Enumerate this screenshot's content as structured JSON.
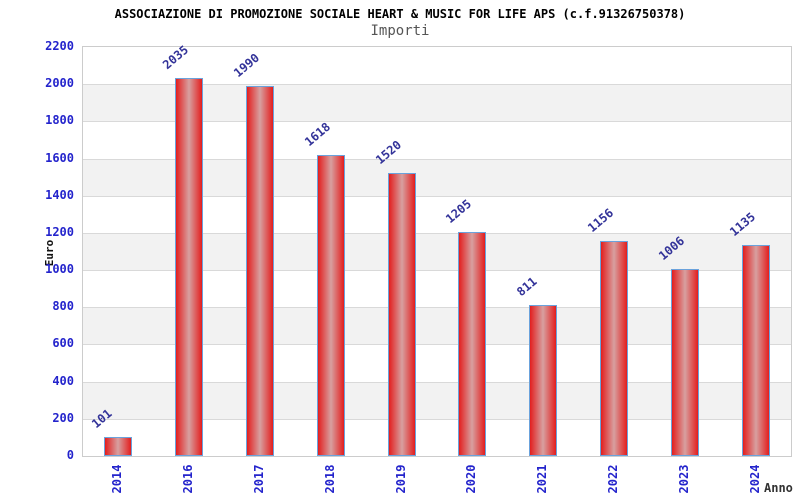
{
  "header": {
    "title": "ASSOCIAZIONE DI PROMOZIONE SOCIALE HEART & MUSIC FOR LIFE APS (c.f.91326750378)",
    "subtitle": "Importi"
  },
  "chart_data": {
    "type": "bar",
    "title": "ASSOCIAZIONE DI PROMOZIONE SOCIALE HEART & MUSIC FOR LIFE APS (c.f.91326750378)",
    "subtitle": "Importi",
    "categories": [
      "2014",
      "2016",
      "2017",
      "2018",
      "2019",
      "2020",
      "2021",
      "2022",
      "2023",
      "2024"
    ],
    "values": [
      101,
      2035,
      1990,
      1618,
      1520,
      1205,
      811,
      1156,
      1006,
      1135
    ],
    "xlabel": "Anno",
    "ylabel": "Euro",
    "ylim": [
      0,
      2200
    ],
    "ytick_step": 200,
    "grid": "horizontal-bands-alternating",
    "legend": false,
    "bar_labels_rotation_deg": -40,
    "colors": {
      "bar_edge_red": "#e31e1e",
      "bar_center_light": "#d7a0a0",
      "bar_border_blue": "#6aa2dc",
      "tick_label_blue": "#2424cc",
      "value_label_navy": "#333399",
      "band_gray": "#f2f2f2",
      "band_white": "#ffffff",
      "gridline_gray": "#d9d9d9",
      "plot_border": "#cccccc"
    }
  }
}
